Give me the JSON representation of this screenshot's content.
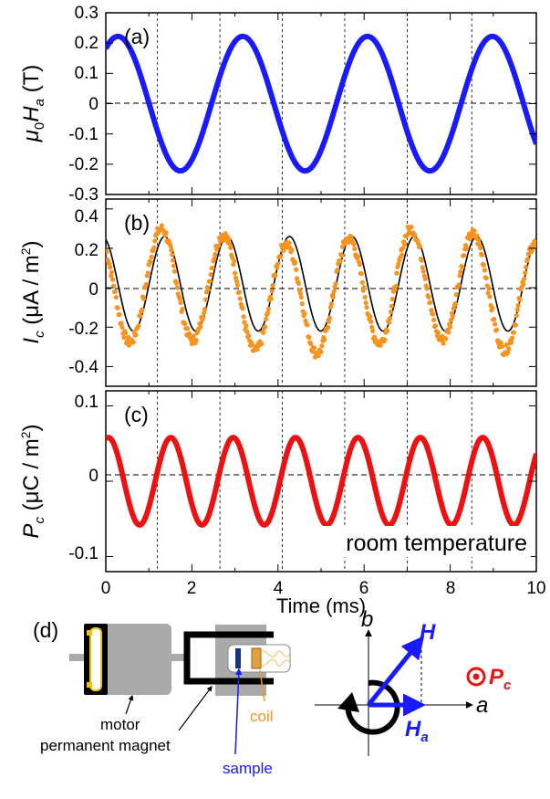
{
  "chart_data": [
    {
      "type": "line",
      "panel_label": "(a)",
      "ylabel_main": "μ",
      "ylabel_sub1": "0",
      "ylabel_mid": "H",
      "ylabel_sub2": "a",
      "ylabel_unit": " (T)",
      "yticks": [
        "0.3",
        "0.2",
        "0.1",
        "0",
        "-0.1",
        "-0.2",
        "-0.3"
      ],
      "ylim": [
        -0.3,
        0.3
      ],
      "xlim": [
        0,
        10
      ],
      "series": [
        {
          "color": "#1a1aff",
          "amplitude": 0.222,
          "frequency_khz": 0.345,
          "phase_deg": 55,
          "style": "thick"
        }
      ]
    },
    {
      "type": "line",
      "panel_label": "(b)",
      "ylabel_main": "I",
      "ylabel_sub": "c",
      "ylabel_unit": " (μA / m",
      "ylabel_sup": "2",
      "ylabel_close": ")",
      "yticks": [
        "0.4",
        "0.2",
        "0",
        "-0.2",
        "-0.4"
      ],
      "ylim": [
        -0.5,
        0.45
      ],
      "xlim": [
        0,
        10
      ],
      "series": [
        {
          "color": "#000000",
          "amplitude": 0.24,
          "offset": 0.02,
          "frequency_khz": 0.69,
          "phase_deg": 110,
          "style": "thin"
        },
        {
          "color": "#f7931e",
          "amplitude": 0.28,
          "offset": -0.02,
          "frequency_khz": 0.69,
          "phase_deg": 130,
          "style": "scatter"
        }
      ]
    },
    {
      "type": "line",
      "panel_label": "(c)",
      "ylabel_main": "P",
      "ylabel_sub": "c",
      "ylabel_unit": " (μC / m",
      "ylabel_sup": "2",
      "ylabel_close": ")",
      "yticks": [
        "0.1",
        "0",
        "-0.1"
      ],
      "ylim": [
        -0.12,
        0.12
      ],
      "xlim": [
        0,
        10
      ],
      "annotation": "room temperature",
      "xticks": [
        "0",
        "2",
        "4",
        "6",
        "8",
        "10"
      ],
      "xlabel": "Time (ms)",
      "series": [
        {
          "color": "#ee1111",
          "amplitude": 0.058,
          "frequency_khz": 0.69,
          "phase_deg": 75,
          "style": "thick"
        }
      ]
    }
  ],
  "vlines_ms": [
    1.2,
    2.65,
    4.1,
    5.55,
    7.0,
    8.5
  ],
  "diagram": {
    "label": "(d)",
    "motor": "motor",
    "magnet": "permanent magnet",
    "sample": "sample",
    "coil": "coil",
    "axis_b": "b",
    "axis_a": "a",
    "vector_H": "H",
    "vector_Ha": "H",
    "vector_Ha_sub": "a",
    "pc_main": "P",
    "pc_sub": "c",
    "colors": {
      "sample": "#1a1aff",
      "coil": "#f7931e",
      "pc": "#ee1111",
      "vector": "#1a1aff"
    }
  }
}
